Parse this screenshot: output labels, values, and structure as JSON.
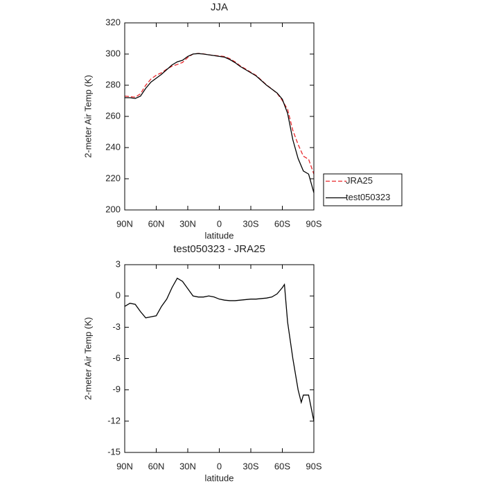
{
  "chart_data": [
    {
      "type": "line",
      "title": "JJA",
      "xlabel": "latitude",
      "ylabel": "2-meter Air Temp (K)",
      "x": [
        90,
        85,
        80,
        75,
        70,
        65,
        60,
        55,
        50,
        45,
        40,
        35,
        30,
        25,
        20,
        15,
        10,
        5,
        0,
        -5,
        -10,
        -15,
        -20,
        -25,
        -30,
        -35,
        -40,
        -45,
        -50,
        -55,
        -60,
        -65,
        -70,
        -75,
        -80,
        -85,
        -90
      ],
      "series": [
        {
          "name": "JRA25",
          "color": "#e8262a",
          "linestyle": "dashed",
          "values": [
            273,
            272.7,
            272.3,
            274.5,
            280,
            284,
            286.4,
            288,
            290.3,
            292.2,
            293.3,
            294.6,
            297.8,
            300,
            300.4,
            300.1,
            299.5,
            299.1,
            298.8,
            298.4,
            297,
            295,
            292.4,
            290.4,
            288.3,
            286.3,
            283.3,
            280.2,
            277.6,
            274.8,
            270.2,
            264.5,
            251,
            242,
            234.5,
            232.5,
            223
          ]
        },
        {
          "name": "test050323",
          "color": "#000000",
          "linestyle": "solid",
          "values": [
            272,
            272,
            271.5,
            273,
            278,
            282,
            284.5,
            287,
            290,
            293,
            295,
            296,
            298.5,
            300,
            300.3,
            300,
            299.5,
            299,
            298.5,
            298,
            296.5,
            294.5,
            292,
            290,
            288,
            286,
            283,
            280,
            277.5,
            275,
            271,
            262,
            245,
            233,
            225,
            223,
            211
          ]
        }
      ],
      "xlim": [
        90,
        -90
      ],
      "xticks": [
        {
          "value": 90,
          "label": "90N"
        },
        {
          "value": 60,
          "label": "60N"
        },
        {
          "value": 30,
          "label": "30N"
        },
        0,
        {
          "value": -30,
          "label": "30S"
        },
        {
          "value": -60,
          "label": "60S"
        },
        {
          "value": -90,
          "label": "90S"
        }
      ],
      "ylim": [
        200,
        320
      ],
      "yticks": [
        200,
        220,
        240,
        260,
        280,
        300,
        320
      ],
      "legend": "right"
    },
    {
      "type": "line",
      "title": "test050323 - JRA25",
      "xlabel": "latitude",
      "ylabel": "2-meter Air Temp (K)",
      "x": [
        90,
        85,
        80,
        75,
        70,
        65,
        60,
        55,
        50,
        45,
        40,
        35,
        30,
        25,
        20,
        15,
        10,
        5,
        0,
        -5,
        -10,
        -15,
        -20,
        -25,
        -30,
        -35,
        -40,
        -45,
        -50,
        -55,
        -60,
        -62,
        -65,
        -70,
        -75,
        -78,
        -80,
        -85,
        -90
      ],
      "series": [
        {
          "color": "#000000",
          "linestyle": "solid",
          "values": [
            -1,
            -0.7,
            -0.8,
            -1.5,
            -2.1,
            -2,
            -1.9,
            -1,
            -0.3,
            0.8,
            1.7,
            1.4,
            0.7,
            0,
            -0.1,
            -0.1,
            0,
            -0.1,
            -0.3,
            -0.4,
            -0.45,
            -0.45,
            -0.4,
            -0.35,
            -0.3,
            -0.3,
            -0.25,
            -0.2,
            -0.1,
            0.2,
            0.8,
            1.1,
            -2.5,
            -6,
            -9,
            -10.2,
            -9.5,
            -9.5,
            -12
          ]
        }
      ],
      "xlim": [
        90,
        -90
      ],
      "xticks": [
        {
          "value": 90,
          "label": "90N"
        },
        {
          "value": 60,
          "label": "60N"
        },
        {
          "value": 30,
          "label": "30N"
        },
        0,
        {
          "value": -30,
          "label": "30S"
        },
        {
          "value": -60,
          "label": "60S"
        },
        {
          "value": -90,
          "label": "90S"
        }
      ],
      "ylim": [
        -15,
        3
      ],
      "yticks": [
        -15,
        -12,
        -9,
        -6,
        -3,
        0,
        3
      ]
    }
  ]
}
